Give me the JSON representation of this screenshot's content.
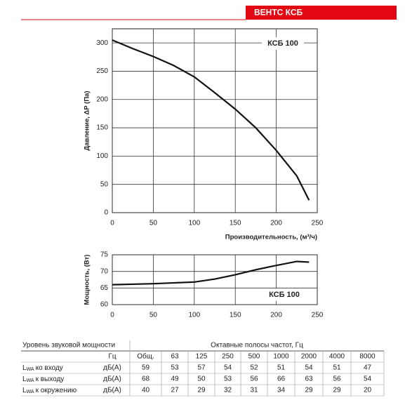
{
  "header": {
    "title": "ВЕНТС КСБ"
  },
  "chart_data": [
    {
      "type": "line",
      "y_label": "Давление, ΔP (Па)",
      "x_label": "Производительность, (м³/ч)",
      "annotation": "КСБ 100",
      "x": [
        0,
        25,
        50,
        75,
        100,
        125,
        150,
        175,
        200,
        225,
        240
      ],
      "series": [
        {
          "color": "#111111",
          "values": [
            305,
            290,
            276,
            260,
            240,
            212,
            183,
            150,
            110,
            65,
            22
          ]
        }
      ],
      "xlim": [
        0,
        250
      ],
      "xticks": [
        0,
        50,
        100,
        150,
        200,
        250
      ],
      "ylim": [
        0,
        325
      ],
      "yticks": [
        0,
        50,
        100,
        150,
        200,
        250,
        300
      ],
      "grid": true
    },
    {
      "type": "line",
      "y_label": "Мощность, (Вт)",
      "annotation": "КСБ 100",
      "x": [
        0,
        50,
        100,
        125,
        150,
        175,
        200,
        225,
        240
      ],
      "series": [
        {
          "color": "#111111",
          "values": [
            66,
            66.3,
            66.8,
            67.7,
            69,
            70.5,
            71.8,
            73,
            72.8
          ]
        }
      ],
      "xlim": [
        0,
        250
      ],
      "xticks": [
        0,
        50,
        100,
        150,
        200,
        250
      ],
      "ylim": [
        60,
        75
      ],
      "yticks": [
        60,
        65,
        70,
        75
      ],
      "grid": true
    }
  ],
  "table": {
    "header": [
      "Уровень звуковой мощности",
      "Октавные полосы частот, Гц"
    ],
    "subheader": [
      "Гц",
      "Общ.",
      63,
      125,
      250,
      500,
      1000,
      2000,
      4000,
      8000
    ],
    "rows": [
      {
        "symbol": "L",
        "sub": "WA",
        "label": "ко входу",
        "unit": "дБ(А)",
        "values": [
          59,
          53,
          57,
          54,
          52,
          51,
          54,
          51,
          47
        ]
      },
      {
        "symbol": "L",
        "sub": "WA",
        "label": "к выходу",
        "unit": "дБ(А)",
        "values": [
          68,
          49,
          50,
          53,
          56,
          66,
          63,
          56,
          54
        ]
      },
      {
        "symbol": "L",
        "sub": "WA",
        "label": "к окружению",
        "unit": "дБ(А)",
        "values": [
          40,
          27,
          29,
          32,
          31,
          34,
          29,
          29,
          20
        ]
      }
    ]
  }
}
